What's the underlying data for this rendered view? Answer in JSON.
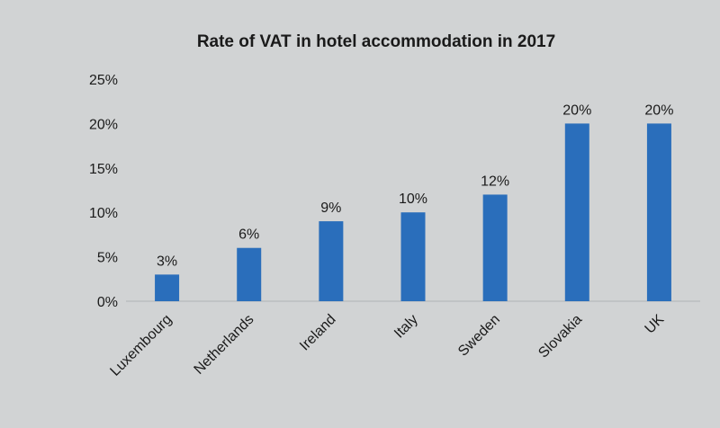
{
  "chart_data": {
    "type": "bar",
    "title": "Rate of VAT in hotel accommodation in 2017",
    "categories": [
      "Luxembourg",
      "Netherlands",
      "Ireland",
      "Italy",
      "Sweden",
      "Slovakia",
      "UK"
    ],
    "values": [
      3,
      6,
      9,
      10,
      12,
      20,
      20
    ],
    "data_labels": [
      "3%",
      "6%",
      "9%",
      "10%",
      "12%",
      "20%",
      "20%"
    ],
    "y_ticks": [
      {
        "value": 0,
        "label": "0%"
      },
      {
        "value": 5,
        "label": "5%"
      },
      {
        "value": 10,
        "label": "10%"
      },
      {
        "value": 15,
        "label": "15%"
      },
      {
        "value": 20,
        "label": "20%"
      },
      {
        "value": 25,
        "label": "25%"
      }
    ],
    "xlabel": "",
    "ylabel": "",
    "ylim": [
      0,
      25
    ],
    "grid": false,
    "bar_color": "#2a6ebb",
    "background_color": "#d1d3d4"
  }
}
